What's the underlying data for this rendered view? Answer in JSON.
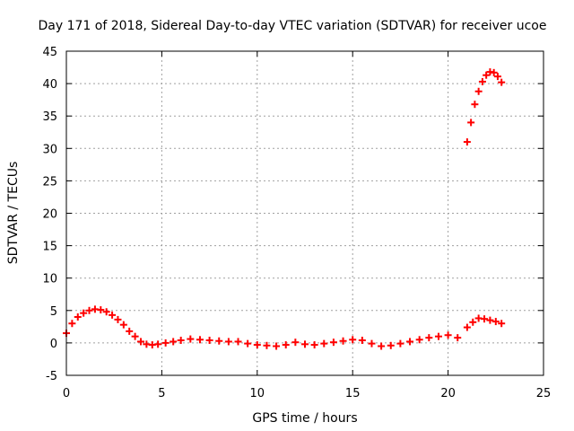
{
  "chart_data": {
    "type": "scatter",
    "title": "Day 171 of 2018, Sidereal Day-to-day VTEC variation (SDTVAR) for receiver ucoe",
    "xlabel": "GPS time / hours",
    "ylabel": "SDTVAR / TECUs",
    "xlim": [
      0,
      25
    ],
    "ylim": [
      -5,
      45
    ],
    "xticks": [
      "0",
      "5",
      "10",
      "15",
      "20",
      "25"
    ],
    "yticks": [
      "-5",
      "0",
      "5",
      "10",
      "15",
      "20",
      "25",
      "30",
      "35",
      "40",
      "45"
    ],
    "grid": true,
    "marker": "+",
    "series": [
      {
        "name": "SDTVAR",
        "color": "#ff0000",
        "x": [
          0.0,
          0.3,
          0.6,
          0.9,
          1.2,
          1.5,
          1.8,
          2.1,
          2.4,
          2.7,
          3.0,
          3.3,
          3.6,
          3.9,
          4.2,
          4.5,
          4.8,
          5.2,
          5.6,
          6.0,
          6.5,
          7.0,
          7.5,
          8.0,
          8.5,
          9.0,
          9.5,
          10.0,
          10.5,
          11.0,
          11.5,
          12.0,
          12.5,
          13.0,
          13.5,
          14.0,
          14.5,
          15.0,
          15.5,
          16.0,
          16.5,
          17.0,
          17.5,
          18.0,
          18.5,
          19.0,
          19.5,
          20.0,
          20.5,
          21.0,
          21.3,
          21.6,
          21.9,
          22.2,
          22.5,
          22.8,
          21.0,
          21.2,
          21.4,
          21.6,
          21.8,
          22.0,
          22.2,
          22.4,
          22.6,
          22.8
        ],
        "y": [
          1.5,
          3.0,
          4.0,
          4.6,
          5.0,
          5.2,
          5.1,
          4.8,
          4.3,
          3.6,
          2.8,
          1.8,
          1.0,
          0.2,
          -0.2,
          -0.3,
          -0.2,
          0.0,
          0.2,
          0.4,
          0.6,
          0.5,
          0.4,
          0.3,
          0.2,
          0.2,
          -0.1,
          -0.3,
          -0.4,
          -0.5,
          -0.3,
          0.1,
          -0.2,
          -0.3,
          -0.1,
          0.1,
          0.3,
          0.5,
          0.4,
          -0.1,
          -0.5,
          -0.4,
          -0.1,
          0.2,
          0.5,
          0.8,
          1.0,
          1.2,
          0.8,
          2.4,
          3.2,
          3.8,
          3.7,
          3.5,
          3.3,
          3.0,
          31.0,
          34.0,
          36.8,
          38.8,
          40.3,
          41.3,
          41.8,
          41.7,
          41.1,
          40.2
        ]
      }
    ]
  }
}
